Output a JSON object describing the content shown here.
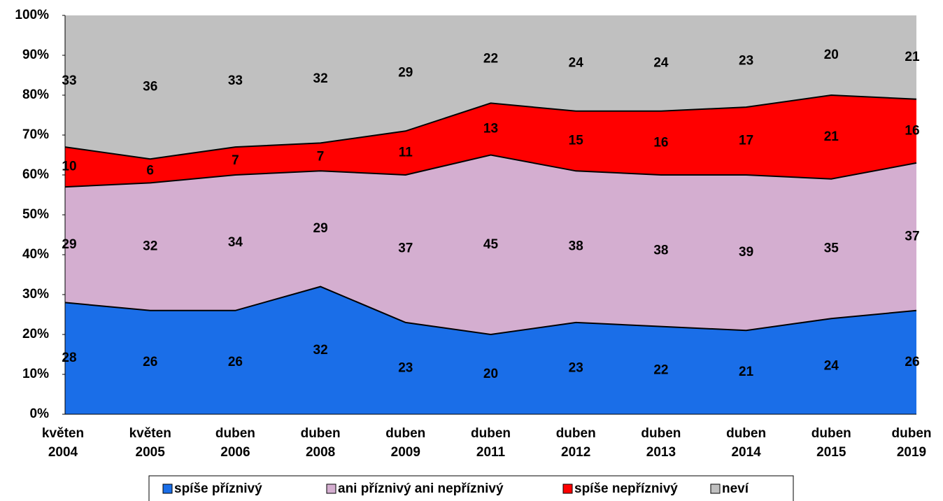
{
  "chart_data": {
    "type": "stacked_area",
    "categories": [
      "květen 2004",
      "květen 2005",
      "duben 2006",
      "duben 2008",
      "duben 2009",
      "duben 2011",
      "duben 2012",
      "duben 2013",
      "duben 2014",
      "duben 2015",
      "duben 2019"
    ],
    "series": [
      {
        "name": "spíše příznivý",
        "color": "#1a6ee8",
        "values": [
          28,
          26,
          26,
          32,
          23,
          20,
          23,
          22,
          21,
          24,
          26
        ]
      },
      {
        "name": "ani příznivý ani nepříznivý",
        "color": "#d4aed0",
        "values": [
          29,
          32,
          34,
          29,
          37,
          45,
          38,
          38,
          39,
          35,
          37
        ]
      },
      {
        "name": "spíše nepříznivý",
        "color": "#ff0000",
        "values": [
          10,
          6,
          7,
          7,
          11,
          13,
          15,
          16,
          17,
          21,
          16
        ]
      },
      {
        "name": "neví",
        "color": "#c0c0c0",
        "values": [
          33,
          36,
          33,
          32,
          29,
          22,
          24,
          24,
          23,
          20,
          21
        ]
      }
    ],
    "ylim": [
      0,
      100
    ],
    "yticks": [
      {
        "value": 0,
        "label": "0%"
      },
      {
        "value": 10,
        "label": "10%"
      },
      {
        "value": 20,
        "label": "20%"
      },
      {
        "value": 30,
        "label": "30%"
      },
      {
        "value": 40,
        "label": "40%"
      },
      {
        "value": 50,
        "label": "50%"
      },
      {
        "value": 60,
        "label": "60%"
      },
      {
        "value": 70,
        "label": "70%"
      },
      {
        "value": 80,
        "label": "80%"
      },
      {
        "value": 90,
        "label": "90%"
      },
      {
        "value": 100,
        "label": "100%"
      }
    ],
    "legend": "bottom"
  }
}
